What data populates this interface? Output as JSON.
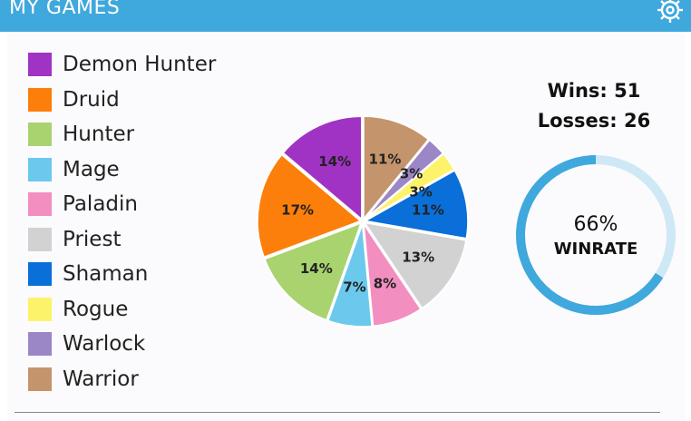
{
  "header": {
    "title": "MY GAMES",
    "settings_icon": "gear-icon",
    "color": "#3fa8dc"
  },
  "chart_data": {
    "type": "pie",
    "title": "",
    "categories": [
      "Demon Hunter",
      "Druid",
      "Hunter",
      "Mage",
      "Paladin",
      "Priest",
      "Shaman",
      "Rogue",
      "Warlock",
      "Warrior"
    ],
    "slices": [
      {
        "label": "Warrior",
        "value": 11,
        "text": "11%",
        "color": "#c4956c"
      },
      {
        "label": "Warlock",
        "value": 3,
        "text": "3%",
        "color": "#9b86c6"
      },
      {
        "label": "Rogue",
        "value": 3,
        "text": "3%",
        "color": "#fdf36b"
      },
      {
        "label": "Shaman",
        "value": 11,
        "text": "11%",
        "color": "#0a6fd8"
      },
      {
        "label": "Priest",
        "value": 13,
        "text": "13%",
        "color": "#d2d2d2"
      },
      {
        "label": "Paladin",
        "value": 8,
        "text": "8%",
        "color": "#f38ec0"
      },
      {
        "label": "Mage",
        "value": 7,
        "text": "7%",
        "color": "#6bc9ee"
      },
      {
        "label": "Hunter",
        "value": 14,
        "text": "14%",
        "color": "#a8d36f"
      },
      {
        "label": "Druid",
        "value": 17,
        "text": "17%",
        "color": "#fb7f0a"
      },
      {
        "label": "Demon Hunter",
        "value": 14,
        "text": "14%",
        "color": "#a033c4"
      }
    ],
    "legend": {
      "placement": "left",
      "items": [
        {
          "label": "Demon Hunter",
          "color": "#a033c4"
        },
        {
          "label": "Druid",
          "color": "#fb7f0a"
        },
        {
          "label": "Hunter",
          "color": "#a8d36f"
        },
        {
          "label": "Mage",
          "color": "#6bc9ee"
        },
        {
          "label": "Paladin",
          "color": "#f38ec0"
        },
        {
          "label": "Priest",
          "color": "#d2d2d2"
        },
        {
          "label": "Shaman",
          "color": "#0a6fd8"
        },
        {
          "label": "Rogue",
          "color": "#fdf36b"
        },
        {
          "label": "Warlock",
          "color": "#9b86c6"
        },
        {
          "label": "Warrior",
          "color": "#c4956c"
        }
      ]
    }
  },
  "stats": {
    "wins_text": "Wins: 51",
    "losses_text": "Losses: 26",
    "wins": 51,
    "losses": 26
  },
  "winrate": {
    "value": 0.66,
    "percent_text": "66%",
    "label": "WINRATE",
    "color": "#3fa8dc",
    "track_color": "#cfe8f6"
  }
}
